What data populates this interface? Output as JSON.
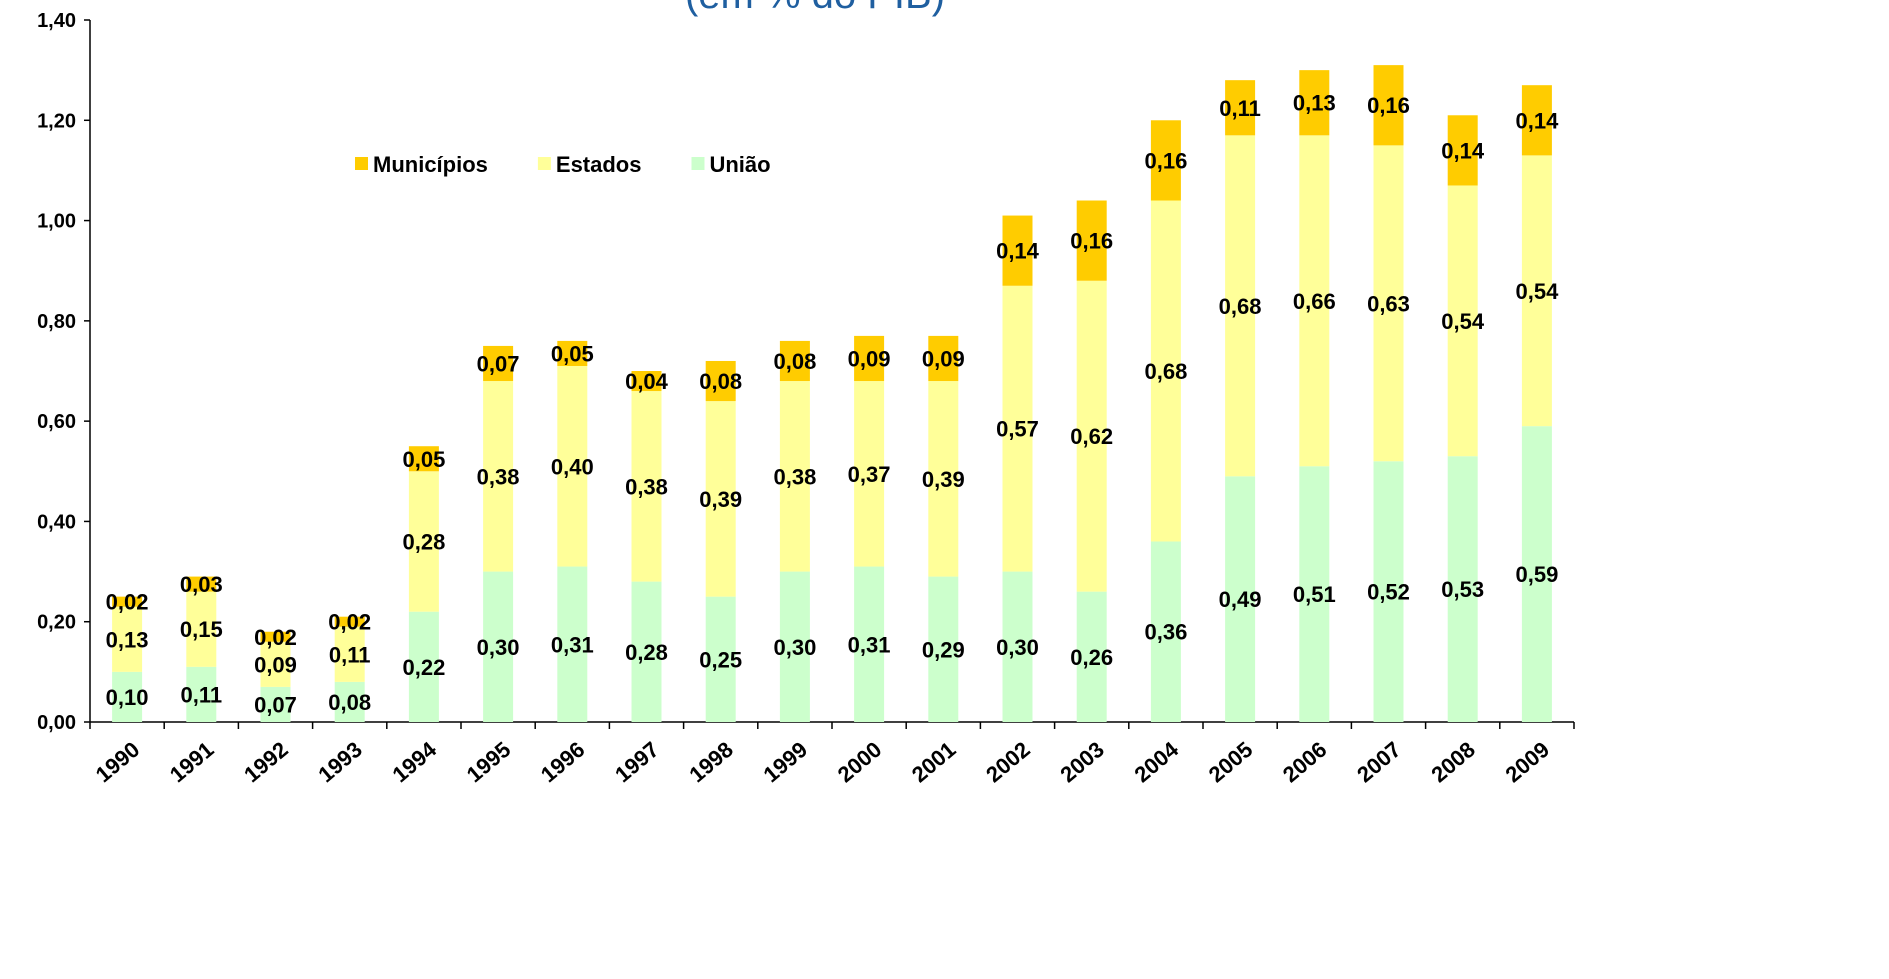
{
  "chart_data": {
    "type": "stacked_bar",
    "subtitle": "(em % do PIB)",
    "categories": [
      "1990",
      "1991",
      "1992",
      "1993",
      "1994",
      "1995",
      "1996",
      "1997",
      "1998",
      "1999",
      "2000",
      "2001",
      "2002",
      "2003",
      "2004",
      "2005",
      "2006",
      "2007",
      "2008",
      "2009"
    ],
    "series": [
      {
        "name": "União",
        "color": "#ccffcc",
        "values": [
          0.1,
          0.11,
          0.07,
          0.08,
          0.22,
          0.3,
          0.31,
          0.28,
          0.25,
          0.3,
          0.31,
          0.29,
          0.3,
          0.26,
          0.36,
          0.49,
          0.51,
          0.52,
          0.53,
          0.59
        ],
        "value_labels": [
          "0,10",
          "0,11",
          "0,07",
          "0,08",
          "0,22",
          "0,30",
          "0,31",
          "0,28",
          "0,25",
          "0,30",
          "0,31",
          "0,29",
          "0,30",
          "0,26",
          "0,36",
          "0,49",
          "0,51",
          "0,52",
          "0,53",
          "0,59"
        ]
      },
      {
        "name": "Estados",
        "color": "#ffff99",
        "values": [
          0.13,
          0.15,
          0.09,
          0.11,
          0.28,
          0.38,
          0.4,
          0.38,
          0.39,
          0.38,
          0.37,
          0.39,
          0.57,
          0.62,
          0.68,
          0.68,
          0.66,
          0.63,
          0.54,
          0.54
        ],
        "value_labels": [
          "0,13",
          "0,15",
          "0,09",
          "0,11",
          "0,28",
          "0,38",
          "0,40",
          "0,38",
          "0,39",
          "0,38",
          "0,37",
          "0,39",
          "0,57",
          "0,62",
          "0,68",
          "0,68",
          "0,66",
          "0,63",
          "0,54",
          "0,54"
        ]
      },
      {
        "name": "Municípios",
        "color": "#ffcc00",
        "values": [
          0.02,
          0.03,
          0.02,
          0.02,
          0.05,
          0.07,
          0.05,
          0.04,
          0.08,
          0.08,
          0.09,
          0.09,
          0.14,
          0.16,
          0.16,
          0.11,
          0.13,
          0.16,
          0.14,
          0.14
        ],
        "value_labels": [
          "0,02",
          "0,03",
          "0,02",
          "0,02",
          "0,05",
          "0,07",
          "0,05",
          "0,04",
          "0,08",
          "0,08",
          "0,09",
          "0,09",
          "0,14",
          "0,16",
          "0,16",
          "0,11",
          "0,13",
          "0,16",
          "0,14",
          "0,14"
        ]
      }
    ],
    "ylim": [
      0,
      1.4
    ],
    "yticks": [
      {
        "value": 0,
        "label": "0,00"
      },
      {
        "value": 0.2,
        "label": "0,20"
      },
      {
        "value": 0.4,
        "label": "0,40"
      },
      {
        "value": 0.6,
        "label": "0,60"
      },
      {
        "value": 0.8,
        "label": "0,80"
      },
      {
        "value": 1.0,
        "label": "1,00"
      },
      {
        "value": 1.2,
        "label": "1,20"
      },
      {
        "value": 1.4,
        "label": "1,40"
      }
    ],
    "legend": "top-left",
    "grid": false
  }
}
